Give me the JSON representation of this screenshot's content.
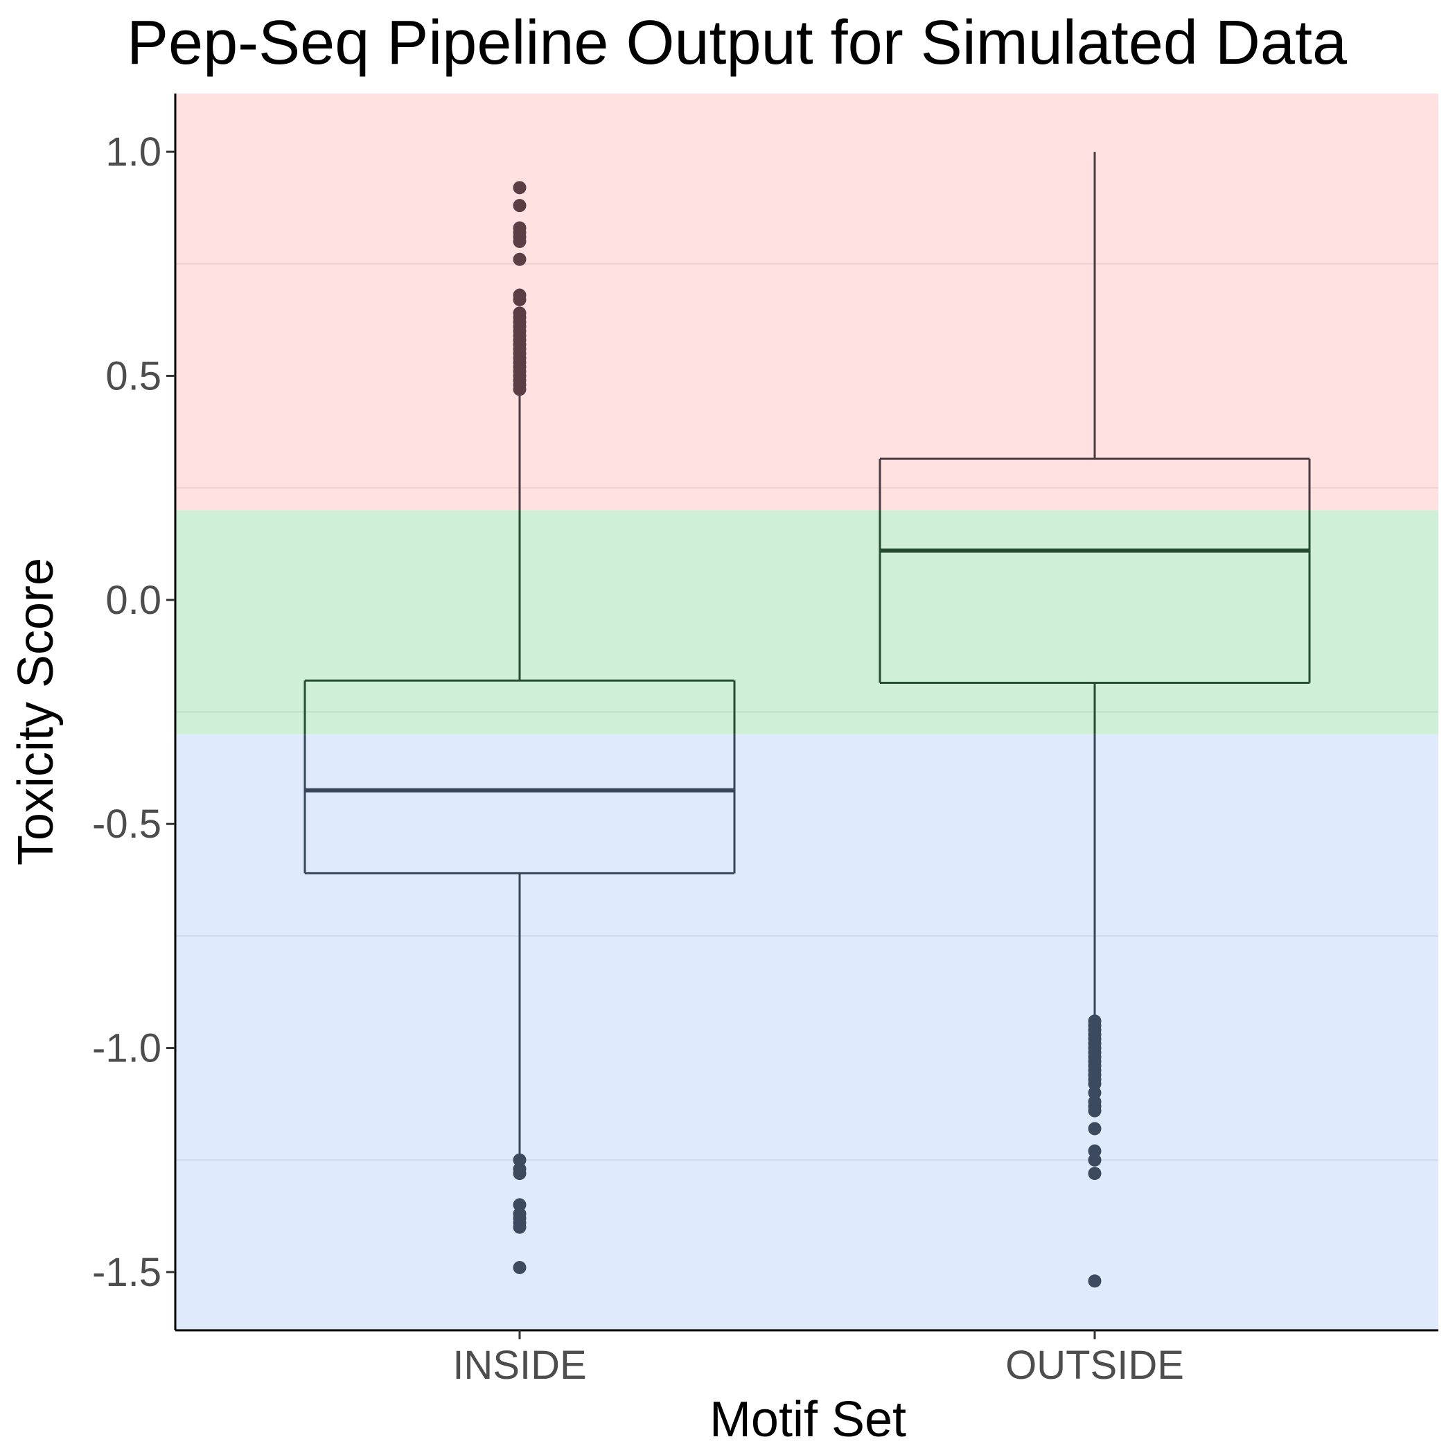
{
  "chart_data": {
    "type": "box",
    "title": "Pep-Seq Pipeline Output for Simulated Data",
    "xlabel": "Motif Set",
    "ylabel": "Toxicity Score",
    "categories": [
      "INSIDE",
      "OUTSIDE"
    ],
    "ylim": [
      -1.63,
      1.13
    ],
    "yticks": [
      {
        "value": 1.0,
        "label": "1.0"
      },
      {
        "value": 0.5,
        "label": "0.5"
      },
      {
        "value": 0.0,
        "label": "0.0"
      },
      {
        "value": -0.5,
        "label": "-0.5"
      },
      {
        "value": -1.0,
        "label": "-1.0"
      },
      {
        "value": -1.5,
        "label": "-1.5"
      }
    ],
    "minor_gridlines": [
      0.75,
      0.25,
      -0.25,
      -0.75,
      -1.25
    ],
    "grid": "horizontal, faint",
    "legend": "none",
    "bands": [
      {
        "from": 0.2,
        "to": 1.13,
        "color": "#ffe1e1"
      },
      {
        "from": -0.3,
        "to": 0.2,
        "color": "#cff0d6"
      },
      {
        "from": -1.63,
        "to": -0.3,
        "color": "#dfebfd"
      }
    ],
    "boxes": [
      {
        "category": "INSIDE",
        "q1": -0.61,
        "median": -0.425,
        "q3": -0.18,
        "whisker_low": -1.24,
        "whisker_high": 0.46,
        "outliers": [
          0.92,
          0.88,
          0.83,
          0.82,
          0.81,
          0.8,
          0.76,
          0.68,
          0.67,
          0.64,
          0.63,
          0.62,
          0.61,
          0.6,
          0.59,
          0.58,
          0.57,
          0.56,
          0.55,
          0.54,
          0.53,
          0.52,
          0.51,
          0.5,
          0.49,
          0.48,
          0.47,
          -1.25,
          -1.27,
          -1.28,
          -1.35,
          -1.37,
          -1.38,
          -1.39,
          -1.4,
          -1.49
        ]
      },
      {
        "category": "OUTSIDE",
        "q1": -0.185,
        "median": 0.11,
        "q3": 0.315,
        "whisker_low": -0.93,
        "whisker_high": 1.0,
        "outliers": [
          -0.94,
          -0.95,
          -0.96,
          -0.97,
          -0.98,
          -0.99,
          -1.0,
          -1.01,
          -1.02,
          -1.03,
          -1.04,
          -1.05,
          -1.06,
          -1.07,
          -1.08,
          -1.1,
          -1.12,
          -1.13,
          -1.14,
          -1.18,
          -1.23,
          -1.25,
          -1.28,
          -1.52
        ]
      }
    ],
    "colors": {
      "axis": "#000000",
      "box_in_band_red": "#4a3b41",
      "box_in_band_green": "#264d30",
      "box_in_band_blue": "#36455a",
      "outlier_red": "#5a3d45",
      "outlier_blue": "#3b4a5e",
      "gridline": "#000000"
    }
  }
}
